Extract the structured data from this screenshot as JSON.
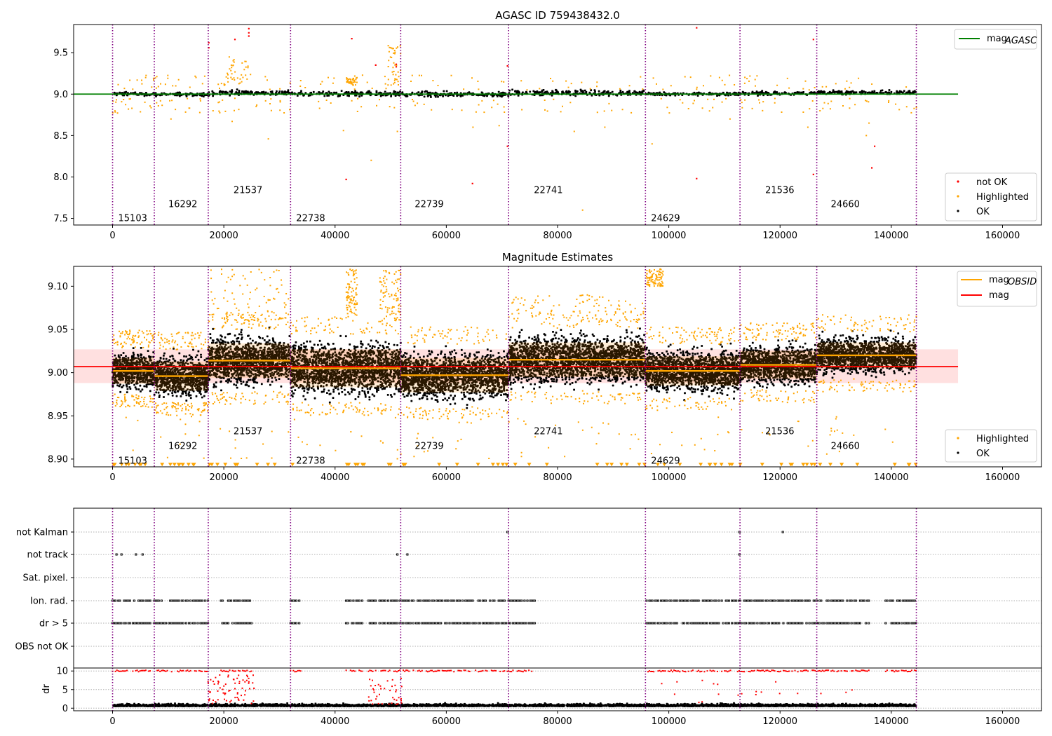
{
  "chart_data": [
    {
      "type": "scatter",
      "title": "AGASC ID 759438432.0",
      "xlim": [
        -7000,
        167000
      ],
      "ylim": [
        7.42,
        9.84
      ],
      "x_ticks": [
        0,
        20000,
        40000,
        60000,
        80000,
        100000,
        120000,
        140000,
        160000
      ],
      "y_ticks": [
        7.5,
        8.0,
        8.5,
        9.0,
        9.5
      ],
      "y_tick_labels": [
        "7.5",
        "8.0",
        "8.5",
        "9.0",
        "9.5"
      ],
      "grid": false,
      "agasc_mag": 9.0,
      "legend_upper": [
        {
          "label_main": "mag",
          "label_sub": "AGASC",
          "color": "#008000",
          "kind": "line"
        }
      ],
      "legend_lower": [
        {
          "label": "not OK",
          "color": "#ff0000",
          "kind": "point"
        },
        {
          "label": "Highlighted",
          "color": "#ffa500",
          "kind": "point"
        },
        {
          "label": "OK",
          "color": "#000000",
          "kind": "point"
        }
      ],
      "legend_upper_position": "upper right",
      "legend_lower_position": "lower right"
    },
    {
      "type": "scatter",
      "title": "Magnitude Estimates",
      "xlim": [
        -7000,
        167000
      ],
      "ylim": [
        8.891,
        9.123
      ],
      "x_ticks": [
        0,
        20000,
        40000,
        60000,
        80000,
        100000,
        120000,
        140000,
        160000
      ],
      "y_ticks": [
        8.9,
        8.95,
        9.0,
        9.05,
        9.1
      ],
      "y_tick_labels": [
        "8.90",
        "8.95",
        "9.00",
        "9.05",
        "9.10"
      ],
      "grid": false,
      "overall_mag": 9.007,
      "overall_band": [
        8.988,
        9.027
      ],
      "legend_upper": [
        {
          "label_main": "mag",
          "label_sub": "OBSID",
          "color": "#ffa500",
          "kind": "line"
        },
        {
          "label_main": "mag",
          "label_sub": "",
          "color": "#ff0000",
          "kind": "line"
        }
      ],
      "legend_lower": [
        {
          "label": "Highlighted",
          "color": "#ffa500",
          "kind": "point"
        },
        {
          "label": "OK",
          "color": "#000000",
          "kind": "point"
        }
      ],
      "legend_upper_position": "upper right",
      "legend_lower_position": "lower right"
    },
    {
      "type": "scatter",
      "xlim": [
        -7000,
        167000
      ],
      "x_ticks": [
        0,
        20000,
        40000,
        60000,
        80000,
        100000,
        120000,
        140000,
        160000
      ],
      "flag_rows": [
        "not Kalman",
        "not track",
        "Sat. pixel.",
        "Ion. rad.",
        "dr > 5",
        "OBS not OK"
      ],
      "grid": "dotted horizontal"
    },
    {
      "type": "scatter",
      "ylabel": "dr",
      "xlim": [
        -7000,
        167000
      ],
      "ylim": [
        -0.7,
        10.8
      ],
      "x_ticks": [
        0,
        20000,
        40000,
        60000,
        80000,
        100000,
        120000,
        140000,
        160000
      ],
      "y_ticks": [
        0,
        5,
        10
      ],
      "grid": "dotted horizontal"
    }
  ],
  "observations": [
    {
      "obsid": "15103",
      "start": 0,
      "end": 7500,
      "label_row": 0,
      "mag": 9.002,
      "std": 0.015
    },
    {
      "obsid": "16292",
      "start": 7500,
      "end": 17200,
      "label_row": 1,
      "mag": 8.996,
      "std": 0.017
    },
    {
      "obsid": "21537",
      "start": 17200,
      "end": 32000,
      "label_row": 2,
      "mag": 9.014,
      "std": 0.02
    },
    {
      "obsid": "22738",
      "start": 32000,
      "end": 51800,
      "label_row": 0,
      "mag": 9.005,
      "std": 0.022
    },
    {
      "obsid": "22739",
      "start": 51800,
      "end": 71200,
      "label_row": 1,
      "mag": 8.997,
      "std": 0.02
    },
    {
      "obsid": "22741",
      "start": 71200,
      "end": 95800,
      "label_row": 2,
      "mag": 9.015,
      "std": 0.02
    },
    {
      "obsid": "24629",
      "start": 95800,
      "end": 112800,
      "label_row": 0,
      "mag": 9.002,
      "std": 0.017
    },
    {
      "obsid": "21536",
      "start": 112800,
      "end": 126600,
      "label_row": 2,
      "mag": 9.009,
      "std": 0.016
    },
    {
      "obsid": "24660",
      "start": 126600,
      "end": 144500,
      "label_row": 1,
      "mag": 9.02,
      "std": 0.015
    }
  ],
  "obs_labels_order": [
    "15103",
    "16292",
    "21537",
    "22738",
    "22739",
    "22741",
    "24629",
    "21536",
    "24660"
  ]
}
